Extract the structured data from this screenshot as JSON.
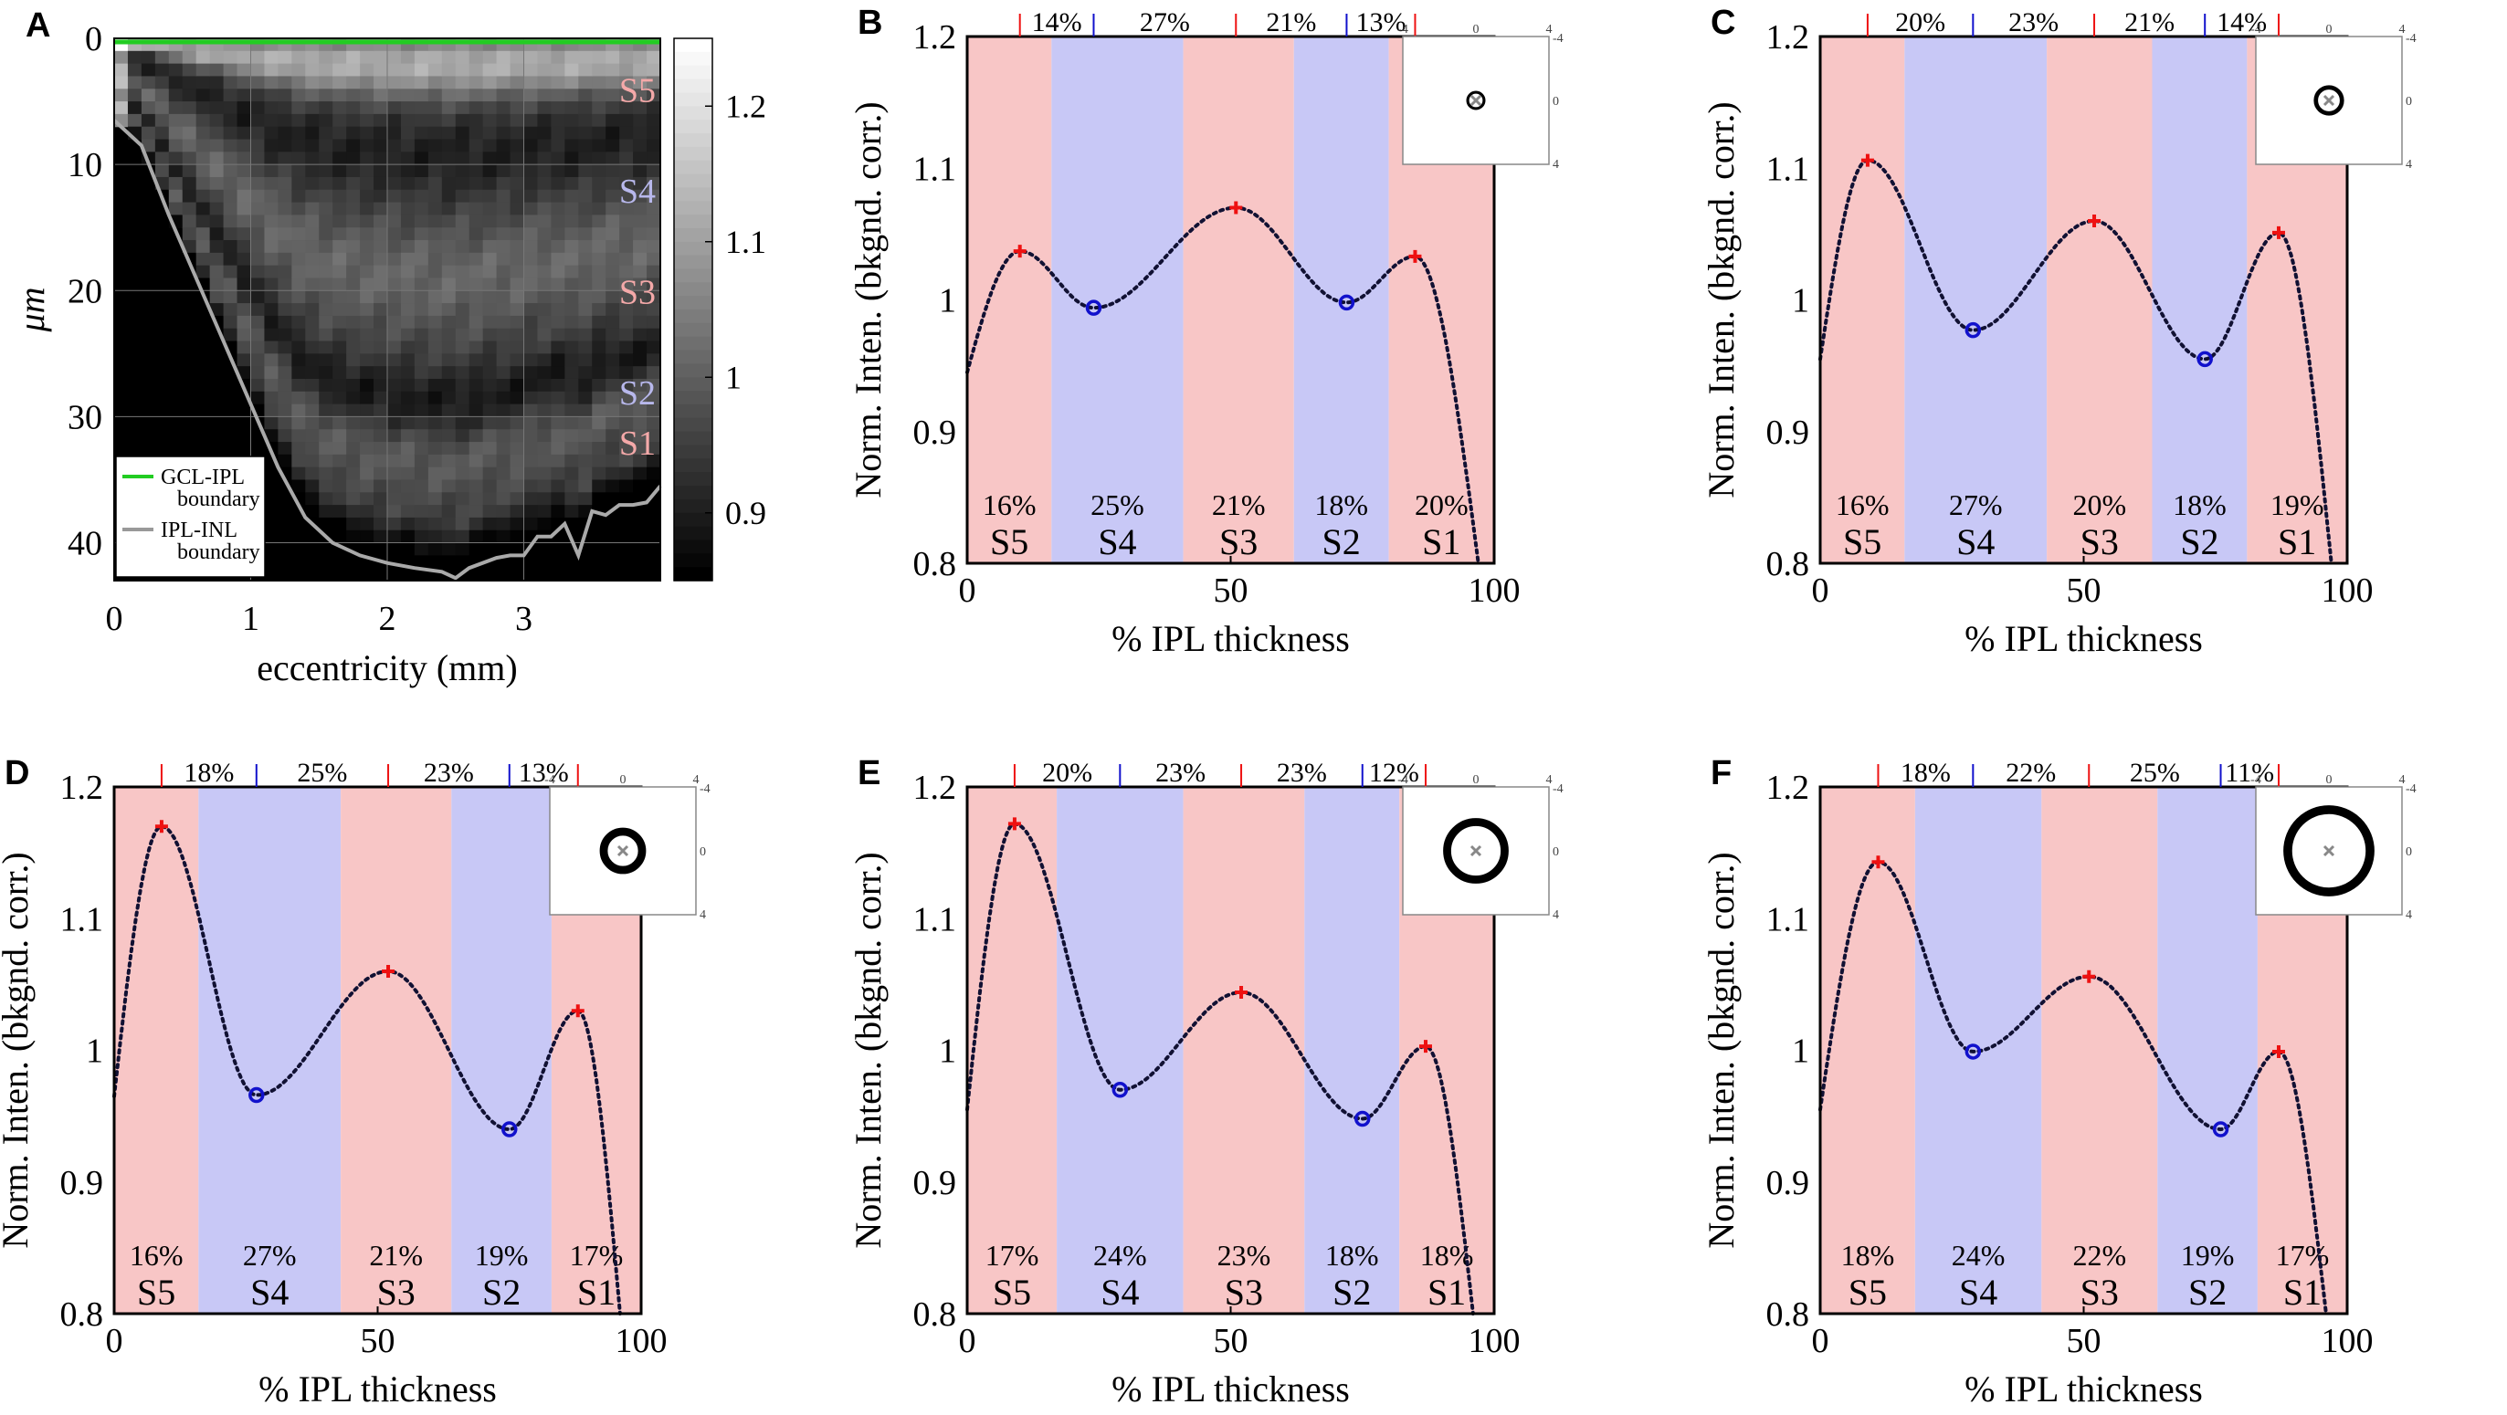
{
  "chart_data": [
    {
      "id": "A",
      "type": "heatmap",
      "panel": "A",
      "xlabel": "eccentricity (mm)",
      "ylabel": "μm",
      "xlim": [
        0,
        4
      ],
      "ylim": [
        0,
        43
      ],
      "xticks": [
        "0",
        "1",
        "2",
        "3"
      ],
      "yticks": [
        "0",
        "10",
        "20",
        "30",
        "40"
      ],
      "colorbar_ticks": [
        "1.2",
        "1.1",
        "1",
        "0.9"
      ],
      "colorbar_range": [
        0.85,
        1.25
      ],
      "layer_labels": [
        {
          "label": "S5",
          "depth": 4,
          "color": "#f4a9a9"
        },
        {
          "label": "S4",
          "depth": 12,
          "color": "#b8b8ec"
        },
        {
          "label": "S3",
          "depth": 20,
          "color": "#f4a9a9"
        },
        {
          "label": "S2",
          "depth": 28,
          "color": "#b8b8ec"
        },
        {
          "label": "S1",
          "depth": 32,
          "color": "#f4a9a9"
        }
      ],
      "legend": [
        {
          "label1": "GCL-IPL",
          "label2": "boundary",
          "color": "#22cc22"
        },
        {
          "label1": "IPL-INL",
          "label2": "boundary",
          "color": "#999999"
        }
      ],
      "ipl_inl_boundary": {
        "ecc": [
          0.0,
          0.2,
          0.4,
          0.6,
          0.8,
          1.0,
          1.2,
          1.4,
          1.6,
          1.8,
          2.0,
          2.2,
          2.4,
          2.5,
          2.6,
          2.8,
          2.9,
          3.0,
          3.1,
          3.2,
          3.3,
          3.4,
          3.5,
          3.6,
          3.7,
          3.8,
          3.9,
          4.0
        ],
        "depth": [
          6.5,
          8.5,
          14,
          19,
          24,
          29,
          34,
          38,
          40,
          41,
          41.6,
          42,
          42.3,
          42.8,
          42,
          41.2,
          41,
          41,
          39.5,
          39.5,
          38.5,
          41,
          37.5,
          37.8,
          37,
          37,
          36.8,
          35.5
        ]
      }
    },
    {
      "id": "B",
      "type": "line",
      "panel": "B",
      "xlabel": "% IPL thickness",
      "ylabel": "Norm. Inten. (bkgnd. corr.)",
      "xlim": [
        0,
        100
      ],
      "ylim": [
        0.8,
        1.2
      ],
      "xticks": [
        "0",
        "50",
        "100"
      ],
      "yticks": [
        "0.8",
        "0.9",
        "1",
        "1.1",
        "1.2"
      ],
      "bands": [
        0,
        16,
        41,
        62,
        80,
        100
      ],
      "band_labels": [
        "S5",
        "S4",
        "S3",
        "S2",
        "S1"
      ],
      "band_pcts": [
        "16%",
        "25%",
        "21%",
        "18%",
        "20%"
      ],
      "top_marks": [
        10,
        24,
        51,
        72,
        85
      ],
      "top_pcts": [
        "14%",
        "27%",
        "21%",
        "13%"
      ],
      "peaks": [
        {
          "x": 10,
          "y": 1.037
        },
        {
          "x": 51,
          "y": 1.07
        },
        {
          "x": 85,
          "y": 1.033
        }
      ],
      "troughs": [
        {
          "x": 24,
          "y": 0.994
        },
        {
          "x": 72,
          "y": 0.998
        }
      ],
      "curve_start": 0.945,
      "curve_end_x": 97,
      "stimulus": {
        "outer": 0.6,
        "inner": 0.42
      },
      "inset_ticks": [
        "-4",
        "0",
        "4"
      ]
    },
    {
      "id": "C",
      "type": "line",
      "panel": "C",
      "xlabel": "% IPL thickness",
      "ylabel": "Norm. Inten. (bkgnd. corr.)",
      "xlim": [
        0,
        100
      ],
      "ylim": [
        0.8,
        1.2
      ],
      "xticks": [
        "0",
        "50",
        "100"
      ],
      "yticks": [
        "0.8",
        "0.9",
        "1",
        "1.1",
        "1.2"
      ],
      "bands": [
        0,
        16,
        43,
        63,
        81,
        100
      ],
      "band_labels": [
        "S5",
        "S4",
        "S3",
        "S2",
        "S1"
      ],
      "band_pcts": [
        "16%",
        "27%",
        "20%",
        "18%",
        "19%"
      ],
      "top_marks": [
        9,
        29,
        52,
        73,
        87
      ],
      "top_pcts": [
        "20%",
        "23%",
        "21%",
        "14%"
      ],
      "peaks": [
        {
          "x": 9,
          "y": 1.106
        },
        {
          "x": 52,
          "y": 1.06
        },
        {
          "x": 87,
          "y": 1.051
        }
      ],
      "troughs": [
        {
          "x": 29,
          "y": 0.977
        },
        {
          "x": 73,
          "y": 0.955
        }
      ],
      "curve_start": 0.955,
      "curve_end_x": 97,
      "stimulus": {
        "outer": 0.95,
        "inner": 0.68
      },
      "inset_ticks": [
        "-4",
        "0",
        "4"
      ]
    },
    {
      "id": "D",
      "type": "line",
      "panel": "D",
      "xlabel": "% IPL thickness",
      "ylabel": "Norm. Inten. (bkgnd. corr.)",
      "xlim": [
        0,
        100
      ],
      "ylim": [
        0.8,
        1.2
      ],
      "xticks": [
        "0",
        "50",
        "100"
      ],
      "yticks": [
        "0.8",
        "0.9",
        "1",
        "1.1",
        "1.2"
      ],
      "bands": [
        0,
        16,
        43,
        64,
        83,
        100
      ],
      "band_labels": [
        "S5",
        "S4",
        "S3",
        "S2",
        "S1"
      ],
      "band_pcts": [
        "16%",
        "27%",
        "21%",
        "19%",
        "17%"
      ],
      "top_marks": [
        9,
        27,
        52,
        75,
        88
      ],
      "top_pcts": [
        "18%",
        "25%",
        "23%",
        "13%"
      ],
      "peaks": [
        {
          "x": 9,
          "y": 1.17
        },
        {
          "x": 52,
          "y": 1.06
        },
        {
          "x": 88,
          "y": 1.03
        }
      ],
      "troughs": [
        {
          "x": 27,
          "y": 0.966
        },
        {
          "x": 75,
          "y": 0.94
        }
      ],
      "curve_start": 0.965,
      "curve_end_x": 96,
      "stimulus": {
        "outer": 1.45,
        "inner": 0.95
      },
      "inset_ticks": [
        "-4",
        "0",
        "4"
      ]
    },
    {
      "id": "E",
      "type": "line",
      "panel": "E",
      "xlabel": "% IPL thickness",
      "ylabel": "Norm. Inten. (bkgnd. corr.)",
      "xlim": [
        0,
        100
      ],
      "ylim": [
        0.8,
        1.2
      ],
      "xticks": [
        "0",
        "50",
        "100"
      ],
      "yticks": [
        "0.8",
        "0.9",
        "1",
        "1.1",
        "1.2"
      ],
      "bands": [
        0,
        17,
        41,
        64,
        82,
        100
      ],
      "band_labels": [
        "S5",
        "S4",
        "S3",
        "S2",
        "S1"
      ],
      "band_pcts": [
        "17%",
        "24%",
        "23%",
        "18%",
        "18%"
      ],
      "top_marks": [
        9,
        29,
        52,
        75,
        87
      ],
      "top_pcts": [
        "20%",
        "23%",
        "23%",
        "12%"
      ],
      "peaks": [
        {
          "x": 9,
          "y": 1.172
        },
        {
          "x": 52,
          "y": 1.044
        },
        {
          "x": 87,
          "y": 1.003
        }
      ],
      "troughs": [
        {
          "x": 29,
          "y": 0.97
        },
        {
          "x": 75,
          "y": 0.948
        }
      ],
      "curve_start": 0.955,
      "curve_end_x": 96,
      "stimulus": {
        "outer": 2.05,
        "inner": 1.55
      },
      "inset_ticks": [
        "-4",
        "0",
        "4"
      ]
    },
    {
      "id": "F",
      "type": "line",
      "panel": "F",
      "xlabel": "% IPL thickness",
      "ylabel": "Norm. Inten. (bkgnd. corr.)",
      "xlim": [
        0,
        100
      ],
      "ylim": [
        0.8,
        1.2
      ],
      "xticks": [
        "0",
        "50",
        "100"
      ],
      "yticks": [
        "0.8",
        "0.9",
        "1",
        "1.1",
        "1.2"
      ],
      "bands": [
        0,
        18,
        42,
        64,
        83,
        100
      ],
      "band_labels": [
        "S5",
        "S4",
        "S3",
        "S2",
        "S1"
      ],
      "band_pcts": [
        "18%",
        "24%",
        "22%",
        "19%",
        "17%"
      ],
      "top_marks": [
        11,
        29,
        51,
        76,
        87
      ],
      "top_pcts": [
        "18%",
        "22%",
        "25%",
        "11%"
      ],
      "peaks": [
        {
          "x": 11,
          "y": 1.143
        },
        {
          "x": 51,
          "y": 1.056
        },
        {
          "x": 87,
          "y": 0.999
        }
      ],
      "troughs": [
        {
          "x": 29,
          "y": 0.999
        },
        {
          "x": 76,
          "y": 0.94
        }
      ],
      "curve_start": 0.955,
      "curve_end_x": 96,
      "stimulus": {
        "outer": 2.85,
        "inner": 2.3
      },
      "inset_ticks": [
        "-4",
        "0",
        "4"
      ]
    }
  ],
  "colors": {
    "pink": "#f8c6c6",
    "blue": "#c8c8f6",
    "peak": "#ee1111",
    "trough": "#1111cc",
    "curve": "#111133",
    "green": "#22cc22",
    "gray": "#999999"
  }
}
